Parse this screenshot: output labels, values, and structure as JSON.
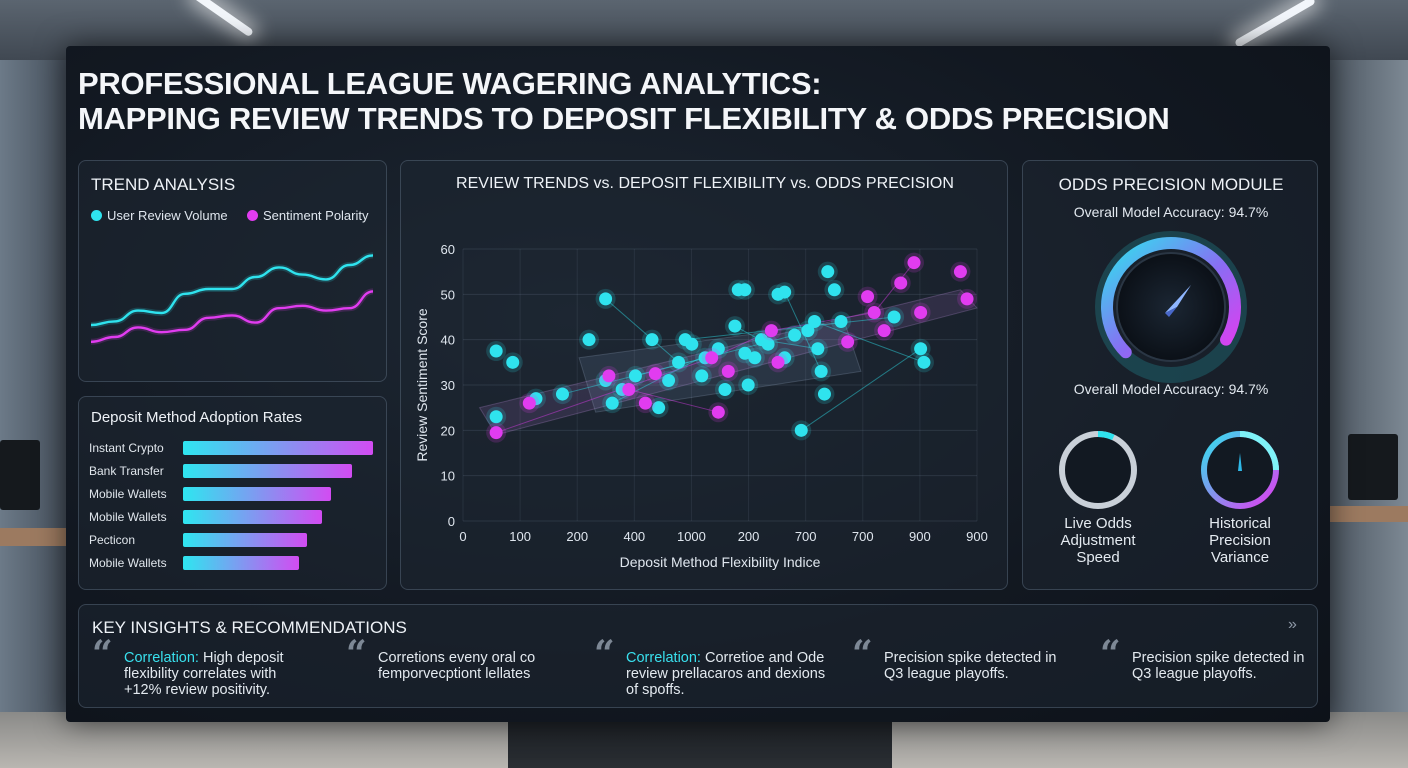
{
  "title_line1": "PROFESSIONAL LEAGUE WAGERING ANALYTICS:",
  "title_line2": "MAPPING REVIEW TRENDS TO DEPOSIT FLEXIBILITY & ODDS PRECISION",
  "colors": {
    "cyan": "#2fe3ee",
    "magenta": "#e13cf0",
    "panel_border": "#3a4656"
  },
  "trend": {
    "title": "TREND ANALYSIS",
    "legend_a": "User Review Volume",
    "legend_b": "Sentiment Polarity"
  },
  "deposit": {
    "title": "Deposit Method Adoption Rates"
  },
  "odds": {
    "title": "ODDS PRECISION MODULE",
    "accuracy_top": "Overall Model Accuracy: 94.7%",
    "accuracy_bottom": "Overall Model Accuracy: 94.7%",
    "gauge_left_label": "Live Odds Adjustment Speed",
    "gauge_right_label": "Historical Precision Variance"
  },
  "insights": {
    "title": "KEY INSIGHTS & RECOMMENDATIONS",
    "more_icon": "chevron-double-right-icon",
    "items": [
      {
        "highlight": "Correlation:",
        "text": " High deposit flexibility correlates with +12% review positivity."
      },
      {
        "highlight": "",
        "text": "Corretions eveny oral co femporvecptiont lellates"
      },
      {
        "highlight": "Correlation:",
        "text": " Corretioe and Ode review prellacaros and dexions of spoffs."
      },
      {
        "highlight": "",
        "text": "Precision spike detected in Q3 league playoffs."
      },
      {
        "highlight": "",
        "text": "Precision spike detected in Q3 league playoffs."
      }
    ]
  },
  "chart_data": [
    {
      "type": "line",
      "title": "TREND ANALYSIS",
      "x": [
        0,
        1,
        2,
        3,
        4,
        5,
        6,
        7,
        8,
        9,
        10,
        11,
        12
      ],
      "series": [
        {
          "name": "User Review Volume",
          "values": [
            30,
            33,
            42,
            40,
            56,
            60,
            60,
            70,
            78,
            72,
            68,
            80,
            88
          ]
        },
        {
          "name": "Sentiment Polarity",
          "values": [
            16,
            20,
            28,
            24,
            26,
            36,
            38,
            32,
            44,
            46,
            42,
            44,
            58
          ]
        }
      ],
      "ylim": [
        0,
        100
      ],
      "legend": "top"
    },
    {
      "type": "bar",
      "title": "Deposit Method Adoption Rates",
      "orientation": "horizontal",
      "categories": [
        "Instant Crypto",
        "Bank Transfer",
        "Mobile Wallets",
        "Mobile Wallets",
        "Pecticon",
        "Mobile Wallets"
      ],
      "values": [
        100,
        89,
        78,
        73,
        65,
        61
      ],
      "xlim": [
        0,
        100
      ]
    },
    {
      "type": "scatter",
      "title": "REVIEW TRENDS vs. DEPOSIT FLEXIBILITY vs. ODDS PRECISION",
      "xlabel": "Deposit Method Flexibility Indice",
      "ylabel": "Review Sentiment Score",
      "x_tick_labels": [
        "0",
        "100",
        "200",
        "400",
        "1000",
        "200",
        "700",
        "700",
        "900",
        "900"
      ],
      "y_ticks": [
        0,
        10,
        20,
        30,
        40,
        50,
        60
      ],
      "ylim": [
        0,
        60
      ],
      "xlim": [
        0,
        9
      ],
      "series": [
        {
          "name": "cyan",
          "points": [
            [
              0.1,
              23
            ],
            [
              0.1,
              37.5
            ],
            [
              0.15,
              35
            ],
            [
              0.22,
              27
            ],
            [
              0.3,
              28
            ],
            [
              0.38,
              40
            ],
            [
              0.43,
              49
            ],
            [
              0.43,
              31
            ],
            [
              0.45,
              26
            ],
            [
              0.48,
              29
            ],
            [
              0.52,
              32
            ],
            [
              0.57,
              40
            ],
            [
              0.59,
              25
            ],
            [
              0.62,
              31
            ],
            [
              0.65,
              35
            ],
            [
              0.67,
              40
            ],
            [
              0.69,
              39
            ],
            [
              0.72,
              32
            ],
            [
              0.73,
              36
            ],
            [
              0.77,
              38
            ],
            [
              0.79,
              29
            ],
            [
              0.82,
              43
            ],
            [
              0.83,
              51
            ],
            [
              0.85,
              37
            ],
            [
              0.86,
              30
            ],
            [
              0.88,
              36
            ],
            [
              0.9,
              40
            ],
            [
              0.92,
              39
            ],
            [
              0.95,
              50
            ],
            [
              0.97,
              36
            ],
            [
              1.0,
              41
            ],
            [
              1.02,
              20
            ],
            [
              1.04,
              42
            ],
            [
              1.06,
              44
            ],
            [
              1.07,
              38
            ],
            [
              1.08,
              33
            ],
            [
              1.09,
              28
            ],
            [
              1.1,
              55
            ],
            [
              1.12,
              51
            ],
            [
              1.14,
              44
            ],
            [
              1.3,
              45
            ],
            [
              1.38,
              38
            ],
            [
              1.39,
              35
            ],
            [
              0.97,
              50.5
            ],
            [
              0.85,
              51
            ]
          ],
          "note": ""
        },
        {
          "name": "magenta",
          "points": [
            [
              0.1,
              19.5
            ],
            [
              0.2,
              26
            ],
            [
              0.44,
              32
            ],
            [
              0.5,
              29
            ],
            [
              0.55,
              26
            ],
            [
              0.58,
              32.5
            ],
            [
              0.75,
              36
            ],
            [
              0.77,
              24
            ],
            [
              0.8,
              33
            ],
            [
              0.93,
              42
            ],
            [
              0.95,
              35
            ],
            [
              1.16,
              39.5
            ],
            [
              1.22,
              49.5
            ],
            [
              1.24,
              46
            ],
            [
              1.27,
              42
            ],
            [
              1.32,
              52.5
            ],
            [
              1.36,
              57
            ],
            [
              1.38,
              46
            ],
            [
              1.5,
              55
            ],
            [
              1.52,
              49
            ]
          ],
          "note": ""
        }
      ]
    },
    {
      "type": "gauge",
      "title": "ODDS PRECISION MODULE",
      "gauges": [
        {
          "label": "Overall Model Accuracy: 94.7%",
          "value": 0.947
        },
        {
          "label": "Live Odds Adjustment Speed",
          "value": 0.07
        },
        {
          "label": "Historical Precision Variance",
          "value": 0.25
        }
      ]
    }
  ]
}
